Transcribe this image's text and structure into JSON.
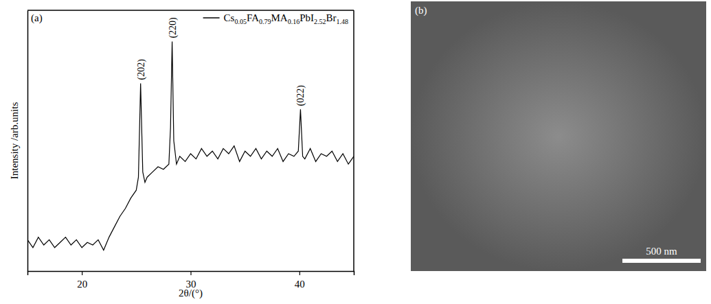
{
  "chart_data": {
    "type": "line",
    "panel_label": "(a)",
    "x_label": "2θ/(°)",
    "y_label": "Intensity /arb.units",
    "x": [
      15,
      15.5,
      16,
      16.5,
      17,
      17.5,
      18,
      18.5,
      19,
      19.5,
      20,
      20.5,
      21,
      21.5,
      22,
      22.5,
      23,
      23.5,
      24,
      24.5,
      25,
      25.2,
      25.4,
      25.6,
      25.8,
      26,
      26.5,
      27,
      27.5,
      28,
      28.15,
      28.3,
      28.45,
      28.7,
      29,
      29.5,
      30,
      30.5,
      31,
      31.5,
      32,
      32.5,
      33,
      33.5,
      34,
      34.5,
      35,
      35.5,
      36,
      36.5,
      37,
      37.5,
      38,
      38.5,
      39,
      39.5,
      39.9,
      40.1,
      40.3,
      40.5,
      41,
      41.5,
      42,
      42.5,
      43,
      43.5,
      44,
      44.5,
      45
    ],
    "series": [
      {
        "name": "Cs0.05FA0.79MA0.16PbI2.52Br1.48",
        "color": "#000000",
        "values": [
          12,
          9,
          13,
          10,
          12,
          9,
          11,
          13,
          10,
          12,
          9,
          11,
          10,
          12,
          8,
          13,
          17,
          21,
          24,
          28,
          31,
          36,
          72,
          38,
          34,
          36,
          38,
          40,
          39,
          41,
          55,
          88,
          50,
          41,
          44,
          42,
          45,
          43,
          47,
          44,
          46,
          43,
          47,
          45,
          48,
          42,
          46,
          44,
          47,
          43,
          46,
          44,
          47,
          42,
          45,
          44,
          46,
          62,
          44,
          43,
          47,
          42,
          45,
          44,
          46,
          42,
          45,
          41,
          44
        ]
      }
    ],
    "xlim": [
      15,
      45
    ],
    "xticks": [
      20,
      30,
      40
    ],
    "ylim": [
      0,
      100
    ],
    "yticks": [],
    "tick_labels": "x",
    "legend": "upper right",
    "annotations": [
      {
        "text": "(202)",
        "x": 25.4
      },
      {
        "text": "(220)",
        "x": 28.3
      },
      {
        "text": "(022)",
        "x": 40.1
      }
    ]
  },
  "image_panel": {
    "panel_label": "(b)",
    "scale_bar": "500 nm"
  }
}
